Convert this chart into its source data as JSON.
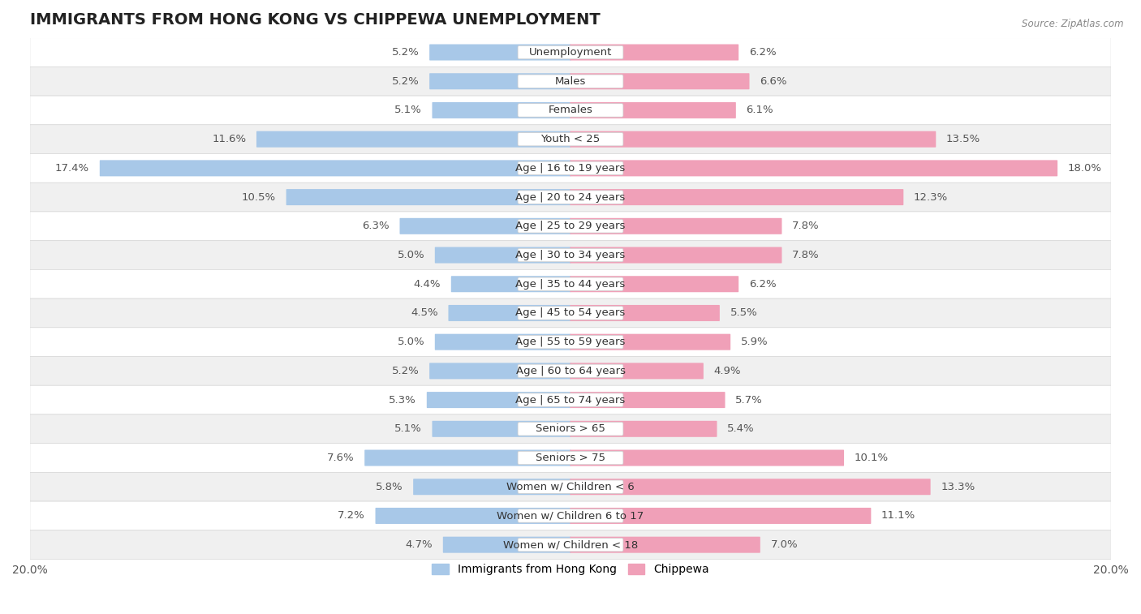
{
  "title": "IMMIGRANTS FROM HONG KONG VS CHIPPEWA UNEMPLOYMENT",
  "source": "Source: ZipAtlas.com",
  "categories": [
    "Unemployment",
    "Males",
    "Females",
    "Youth < 25",
    "Age | 16 to 19 years",
    "Age | 20 to 24 years",
    "Age | 25 to 29 years",
    "Age | 30 to 34 years",
    "Age | 35 to 44 years",
    "Age | 45 to 54 years",
    "Age | 55 to 59 years",
    "Age | 60 to 64 years",
    "Age | 65 to 74 years",
    "Seniors > 65",
    "Seniors > 75",
    "Women w/ Children < 6",
    "Women w/ Children 6 to 17",
    "Women w/ Children < 18"
  ],
  "hk_values": [
    5.2,
    5.2,
    5.1,
    11.6,
    17.4,
    10.5,
    6.3,
    5.0,
    4.4,
    4.5,
    5.0,
    5.2,
    5.3,
    5.1,
    7.6,
    5.8,
    7.2,
    4.7
  ],
  "chippewa_values": [
    6.2,
    6.6,
    6.1,
    13.5,
    18.0,
    12.3,
    7.8,
    7.8,
    6.2,
    5.5,
    5.9,
    4.9,
    5.7,
    5.4,
    10.1,
    13.3,
    11.1,
    7.0
  ],
  "hk_color": "#a8c8e8",
  "chippewa_color": "#f0a0b8",
  "bar_height": 0.52,
  "xlim": 20.0,
  "bg_color": "#ffffff",
  "row_color_light": "#ffffff",
  "row_color_dark": "#f0f0f0",
  "row_border_color": "#d8d8d8",
  "label_fontsize": 9.5,
  "value_fontsize": 9.5,
  "title_fontsize": 14,
  "legend_hk": "Immigrants from Hong Kong",
  "legend_chippewa": "Chippewa"
}
